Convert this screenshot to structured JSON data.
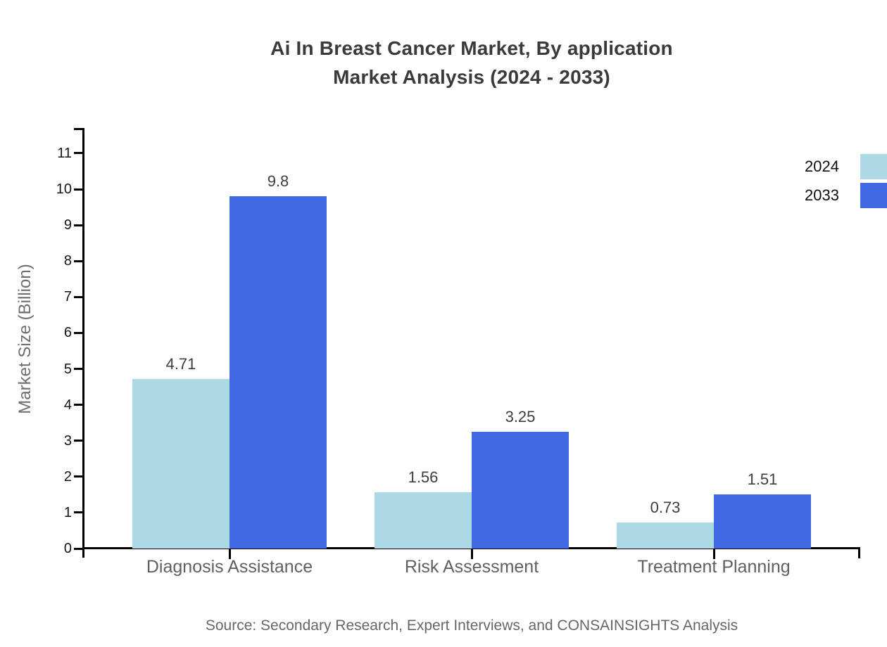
{
  "title": {
    "line1": "Ai In Breast Cancer Market, By application",
    "line2": "Market Analysis (2024 - 2033)"
  },
  "source": "Source: Secondary Research, Expert Interviews, and CONSAINSIGHTS Analysis",
  "legend": {
    "items": [
      {
        "label": "2024",
        "color": "#add8e6"
      },
      {
        "label": "2033",
        "color": "#4169e1"
      }
    ]
  },
  "chart_data": {
    "type": "bar",
    "title": "Ai In Breast Cancer Market, By application Market Analysis (2024 - 2033)",
    "categories": [
      "Diagnosis Assistance",
      "Risk Assessment",
      "Treatment Planning"
    ],
    "series": [
      {
        "name": "2024",
        "color": "#add8e6",
        "values": [
          4.71,
          1.56,
          0.73
        ],
        "labels": [
          "4.71",
          "1.56",
          "0.73"
        ]
      },
      {
        "name": "2033",
        "color": "#4169e1",
        "values": [
          9.8,
          3.25,
          1.51
        ],
        "labels": [
          "9.8",
          "3.25",
          "1.51"
        ]
      }
    ],
    "xlabel": "",
    "ylabel": "Market Size (Billion)",
    "ylim": [
      0,
      11.7
    ],
    "yticks": [
      0,
      1,
      2,
      3,
      4,
      5,
      6,
      7,
      8,
      9,
      10,
      11
    ],
    "grid": false,
    "legend_position": "top-right"
  }
}
